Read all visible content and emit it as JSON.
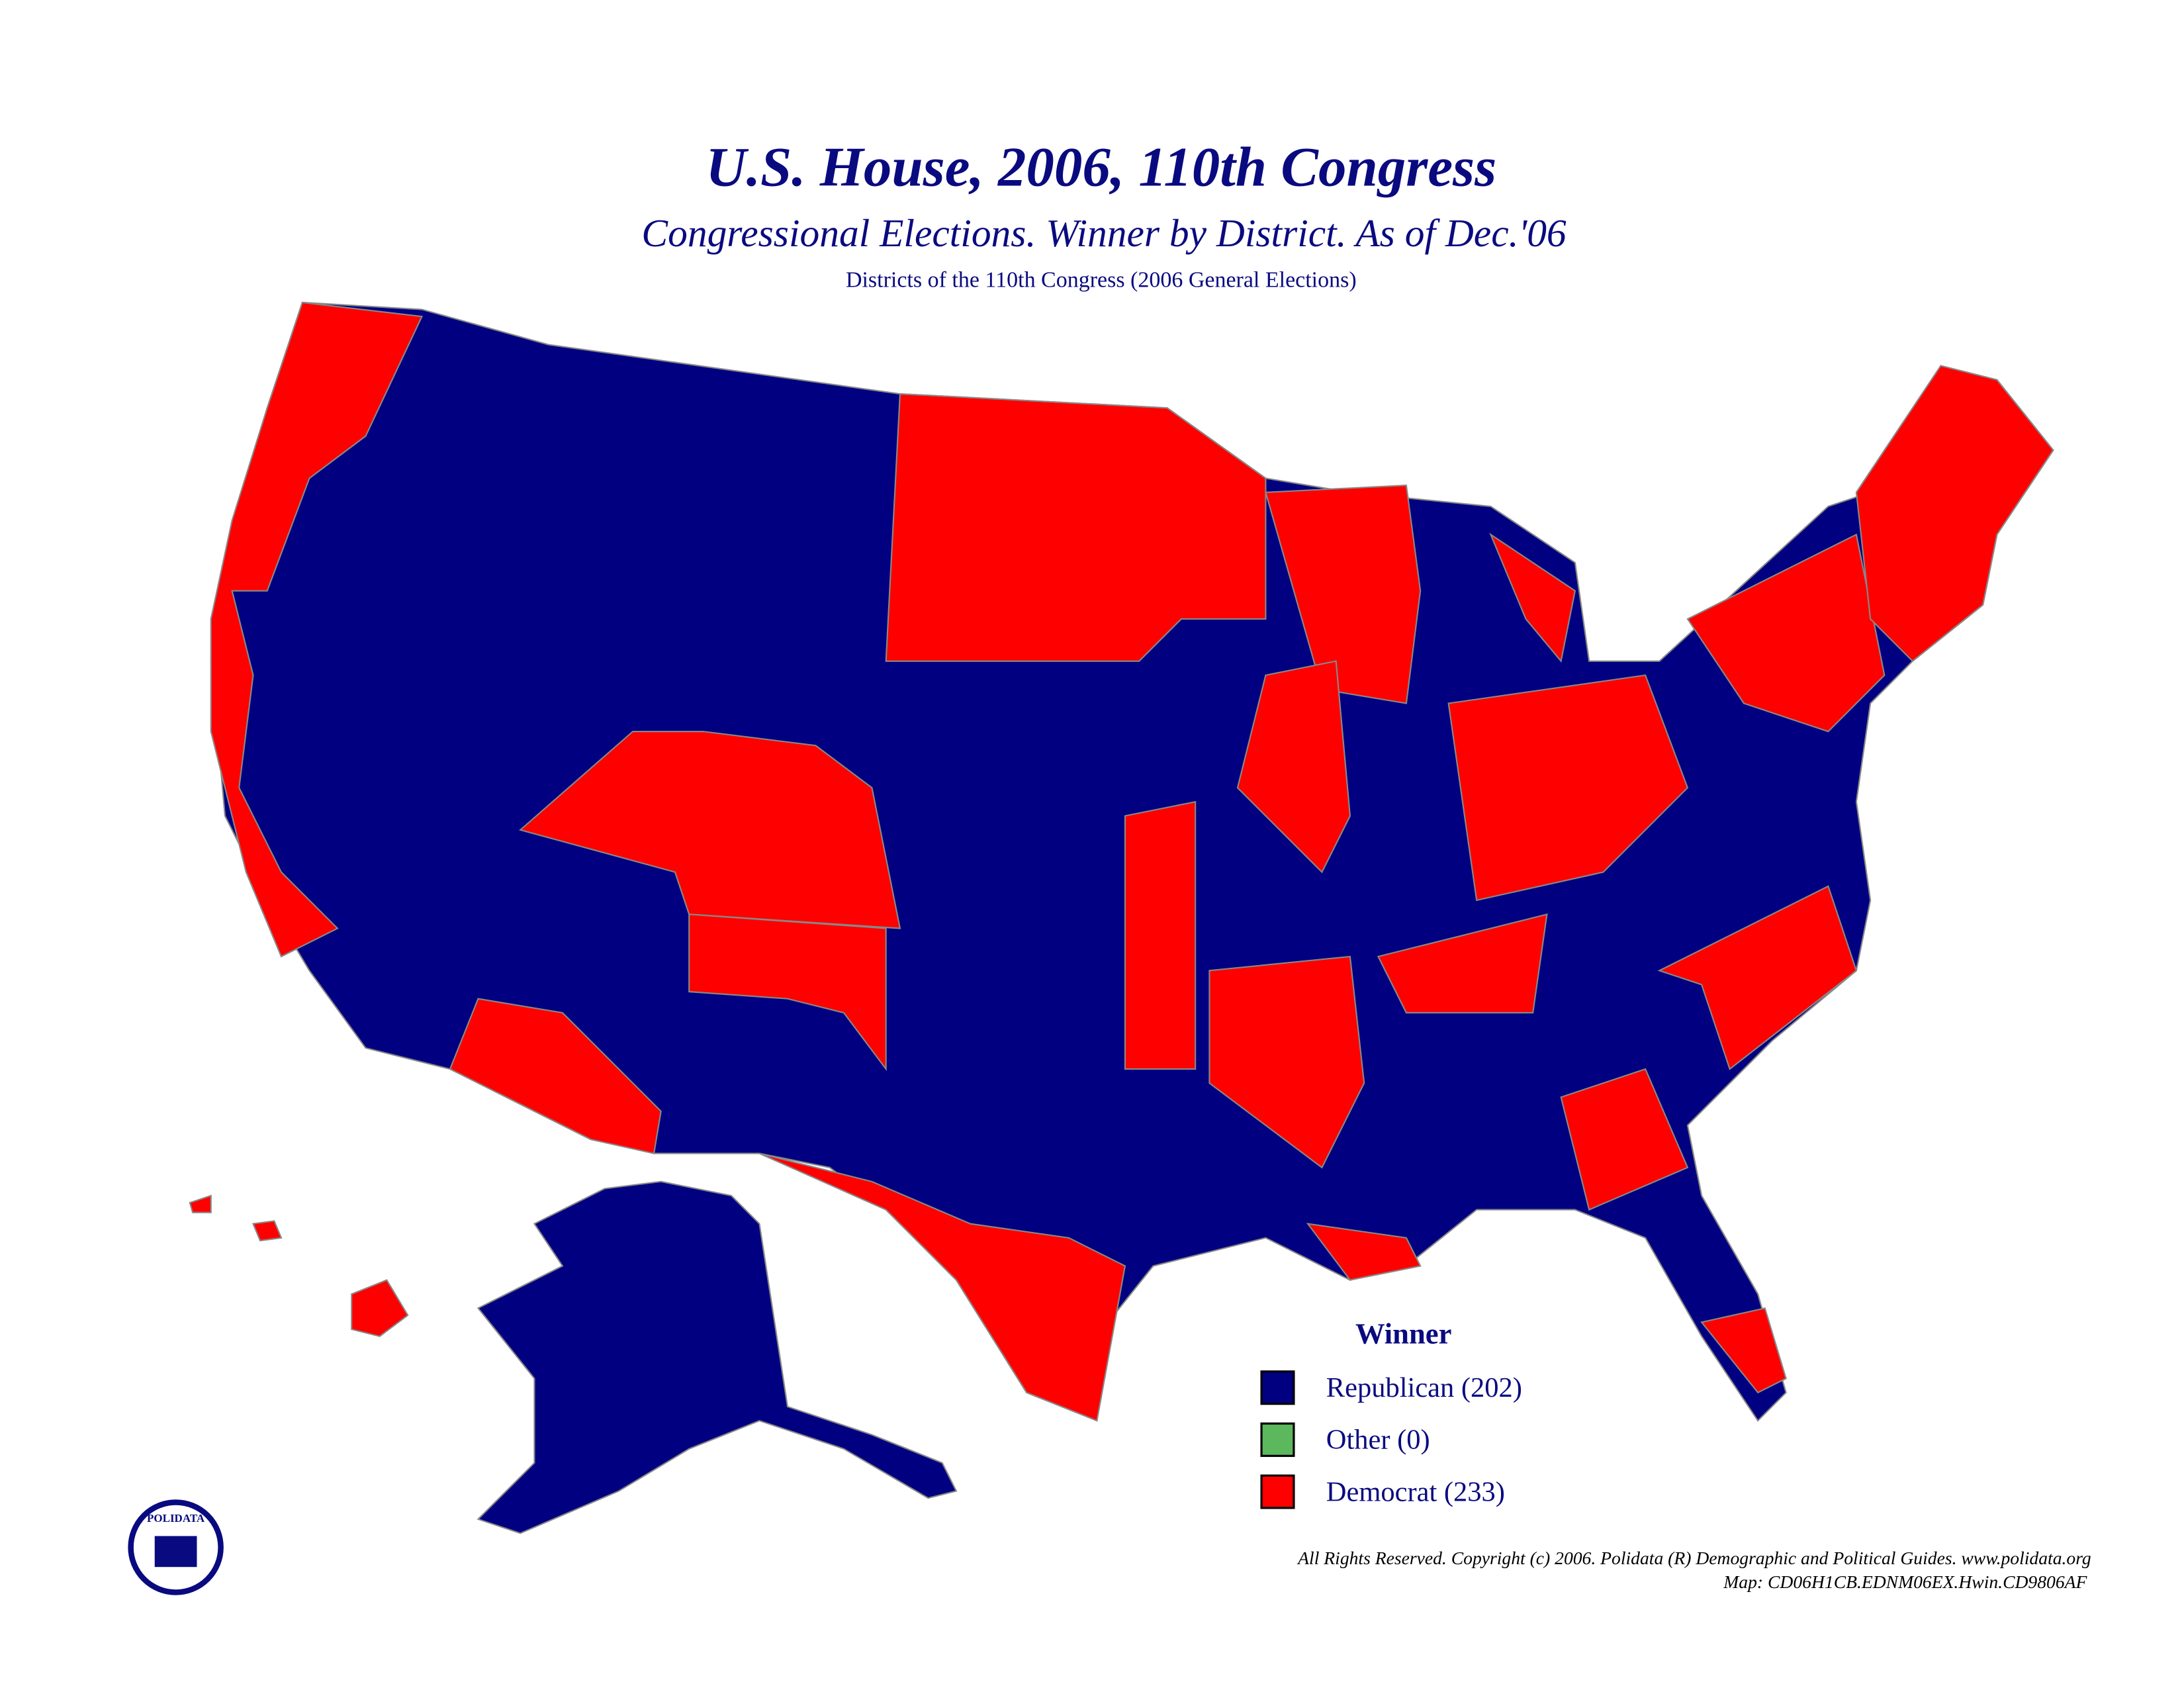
{
  "header": {
    "title": "U.S. House, 2006, 110th Congress",
    "subtitle": "Congressional Elections. Winner by District. As of Dec.'06",
    "note": "Districts of the 110th Congress (2006 General Elections)"
  },
  "legend": {
    "title": "Winner",
    "items": [
      {
        "label": "Republican (202)",
        "color": "#000080"
      },
      {
        "label": "Other (0)",
        "color": "#5cb85c"
      },
      {
        "label": "Democrat (233)",
        "color": "#ff0000"
      }
    ]
  },
  "logo": "POLIDATA",
  "footer": {
    "copyright": "All Rights Reserved. Copyright (c) 2006. Polidata (R) Demographic and Political Guides. www.polidata.org",
    "map_id": "Map: CD06H1CB.EDNM06EX.Hwin.CD9806AF"
  }
}
